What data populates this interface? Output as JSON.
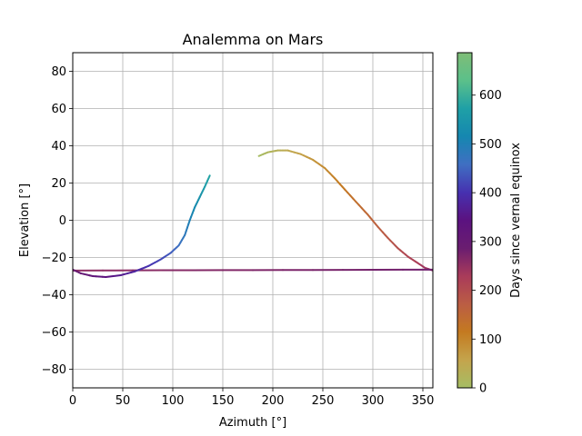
{
  "chart_data": {
    "type": "line",
    "title": "Analemma on Mars",
    "xlabel": "Azimuth [°]",
    "ylabel": "Elevation [°]",
    "xlim": [
      0,
      360
    ],
    "ylim": [
      -90,
      90
    ],
    "xticks": [
      0,
      50,
      100,
      150,
      200,
      250,
      300,
      350
    ],
    "yticks": [
      -80,
      -60,
      -40,
      -20,
      0,
      20,
      40,
      60,
      80
    ],
    "grid": true,
    "colormap": "terrain (reversed)",
    "colorbar": {
      "label": "Days since vernal equinox",
      "range": [
        0,
        687
      ],
      "ticks": [
        0,
        100,
        200,
        300,
        400,
        500,
        600
      ],
      "colors": [
        "#a6bd64",
        "#c4a44c",
        "#c47a20",
        "#bb5d44",
        "#a93b5a",
        "#6a1d70",
        "#5b1280",
        "#4631b0",
        "#3f6fc2",
        "#1587b0",
        "#1fa0a6",
        "#5bc08a",
        "#7fbd77"
      ]
    },
    "series": [
      {
        "points": [
          {
            "day": 0,
            "x": 186,
            "y": 34.5
          },
          {
            "day": 15,
            "x": 195,
            "y": 36.5
          },
          {
            "day": 30,
            "x": 205,
            "y": 37.5
          },
          {
            "day": 45,
            "x": 215,
            "y": 37.5
          },
          {
            "day": 60,
            "x": 228,
            "y": 35.5
          },
          {
            "day": 75,
            "x": 240,
            "y": 32.5
          },
          {
            "day": 90,
            "x": 252,
            "y": 28
          },
          {
            "day": 105,
            "x": 262,
            "y": 22.5
          },
          {
            "day": 120,
            "x": 272,
            "y": 16.5
          },
          {
            "day": 135,
            "x": 283,
            "y": 10
          },
          {
            "day": 150,
            "x": 295,
            "y": 3
          },
          {
            "day": 165,
            "x": 305,
            "y": -3.5
          },
          {
            "day": 180,
            "x": 315,
            "y": -9.5
          },
          {
            "day": 195,
            "x": 325,
            "y": -15
          },
          {
            "day": 210,
            "x": 335,
            "y": -19.5
          },
          {
            "day": 225,
            "x": 345,
            "y": -23
          },
          {
            "day": 240,
            "x": 352,
            "y": -25.5
          },
          {
            "day": 250,
            "x": 360,
            "y": -27
          },
          {
            "day": 252,
            "x": 0,
            "y": -27
          },
          {
            "day": 262,
            "x": 120,
            "y": -26.8
          },
          {
            "day": 272,
            "x": 240,
            "y": -26.7
          },
          {
            "day": 282,
            "x": 360,
            "y": -26.5
          },
          {
            "day": 284,
            "x": 0,
            "y": -26.5
          },
          {
            "day": 300,
            "x": 8,
            "y": -28.5
          },
          {
            "day": 320,
            "x": 20,
            "y": -30
          },
          {
            "day": 340,
            "x": 33,
            "y": -30.5
          },
          {
            "day": 360,
            "x": 48,
            "y": -29.5
          },
          {
            "day": 380,
            "x": 62,
            "y": -27.5
          },
          {
            "day": 400,
            "x": 76,
            "y": -24.5
          },
          {
            "day": 420,
            "x": 88,
            "y": -21
          },
          {
            "day": 440,
            "x": 98,
            "y": -17.5
          },
          {
            "day": 460,
            "x": 106,
            "y": -13.5
          },
          {
            "day": 480,
            "x": 112,
            "y": -8
          },
          {
            "day": 500,
            "x": 117,
            "y": 0
          },
          {
            "day": 520,
            "x": 122,
            "y": 7
          },
          {
            "day": 540,
            "x": 127,
            "y": 12.5
          },
          {
            "day": 560,
            "x": 132,
            "y": 18
          },
          {
            "day": 580,
            "x": 137,
            "y": 24
          }
        ]
      }
    ]
  }
}
